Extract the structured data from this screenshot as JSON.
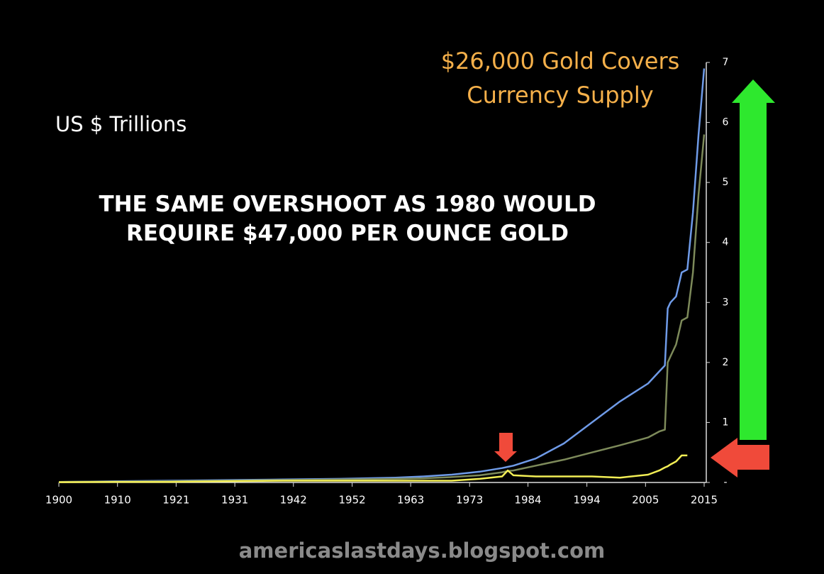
{
  "chart_data": {
    "type": "line",
    "title": "THE SAME OVERSHOOT AS 1980 WOULD REQUIRE $47,000 PER OUNCE GOLD",
    "ylabel": "US $ Trillions",
    "annotation": "$26,000 Gold Covers Currency Supply",
    "watermark": "americaslastdays.blogspot.com",
    "x": [
      1900,
      1910,
      1920,
      1930,
      1940,
      1950,
      1960,
      1965,
      1970,
      1975,
      1979,
      1980,
      1981,
      1985,
      1990,
      1995,
      2000,
      2005,
      2007,
      2008,
      2008.5,
      2009,
      2010,
      2011,
      2012,
      2013,
      2014,
      2015
    ],
    "series": [
      {
        "color": "#6f9be8",
        "values": [
          0.01,
          0.02,
          0.03,
          0.04,
          0.05,
          0.06,
          0.08,
          0.1,
          0.13,
          0.18,
          0.24,
          0.26,
          0.28,
          0.4,
          0.65,
          1.0,
          1.35,
          1.65,
          1.85,
          1.95,
          2.9,
          3.0,
          3.1,
          3.5,
          3.55,
          4.5,
          5.8,
          6.9
        ]
      },
      {
        "color": "#7d8a5a",
        "values": [
          0.01,
          0.015,
          0.02,
          0.03,
          0.04,
          0.05,
          0.06,
          0.07,
          0.09,
          0.12,
          0.17,
          0.19,
          0.2,
          0.28,
          0.38,
          0.5,
          0.62,
          0.75,
          0.85,
          0.88,
          2.0,
          2.1,
          2.3,
          2.7,
          2.75,
          3.5,
          4.8,
          5.8
        ]
      },
      {
        "color": "#f2ee55",
        "values": [
          0.005,
          0.01,
          0.01,
          0.02,
          0.03,
          0.03,
          0.03,
          0.03,
          0.03,
          0.06,
          0.1,
          0.2,
          0.12,
          0.1,
          0.1,
          0.1,
          0.08,
          0.13,
          0.2,
          0.25,
          0.27,
          0.3,
          0.35,
          0.45,
          0.45,
          null,
          null,
          null
        ]
      }
    ],
    "xlim": [
      1900,
      2015
    ],
    "xticks": [
      1900,
      {
        "value": 1910.45,
        "label": "1910"
      },
      {
        "value": 1920.9,
        "label": "1921"
      },
      {
        "value": 1931.36,
        "label": "1931"
      },
      {
        "value": 1941.8,
        "label": "1942"
      },
      {
        "value": 1952.27,
        "label": "1952"
      },
      {
        "value": 1962.7,
        "label": "1963"
      },
      {
        "value": 1973.2,
        "label": "1973"
      },
      {
        "value": 1983.6,
        "label": "1984"
      },
      {
        "value": 1994.1,
        "label": "1994"
      },
      {
        "value": 2004.55,
        "label": "2005"
      },
      2015
    ],
    "ylim": [
      0,
      7
    ],
    "yticks": [
      {
        "value": 0,
        "label": "-"
      },
      1,
      2,
      3,
      4,
      5,
      6,
      7
    ]
  }
}
